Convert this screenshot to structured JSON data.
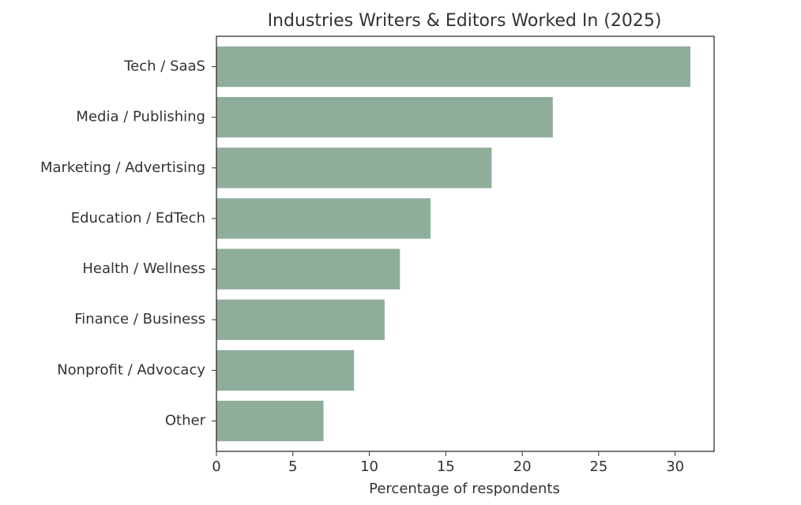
{
  "chart_data": {
    "type": "barh",
    "title": "Industries Writers & Editors Worked In (2025)",
    "x_label": "Percentage of respondents",
    "categories": [
      "Tech / SaaS",
      "Media / Publishing",
      "Marketing / Advertising",
      "Education / EdTech",
      "Health / Wellness",
      "Finance / Business",
      "Nonprofit / Advocacy",
      "Other"
    ],
    "values": [
      31,
      22,
      18,
      14,
      12,
      11,
      9,
      7
    ],
    "color": "#8fad9b",
    "xlim": [
      0,
      32.55
    ],
    "xticks": [
      0,
      5,
      10,
      15,
      20,
      25,
      30
    ],
    "grid": false
  }
}
